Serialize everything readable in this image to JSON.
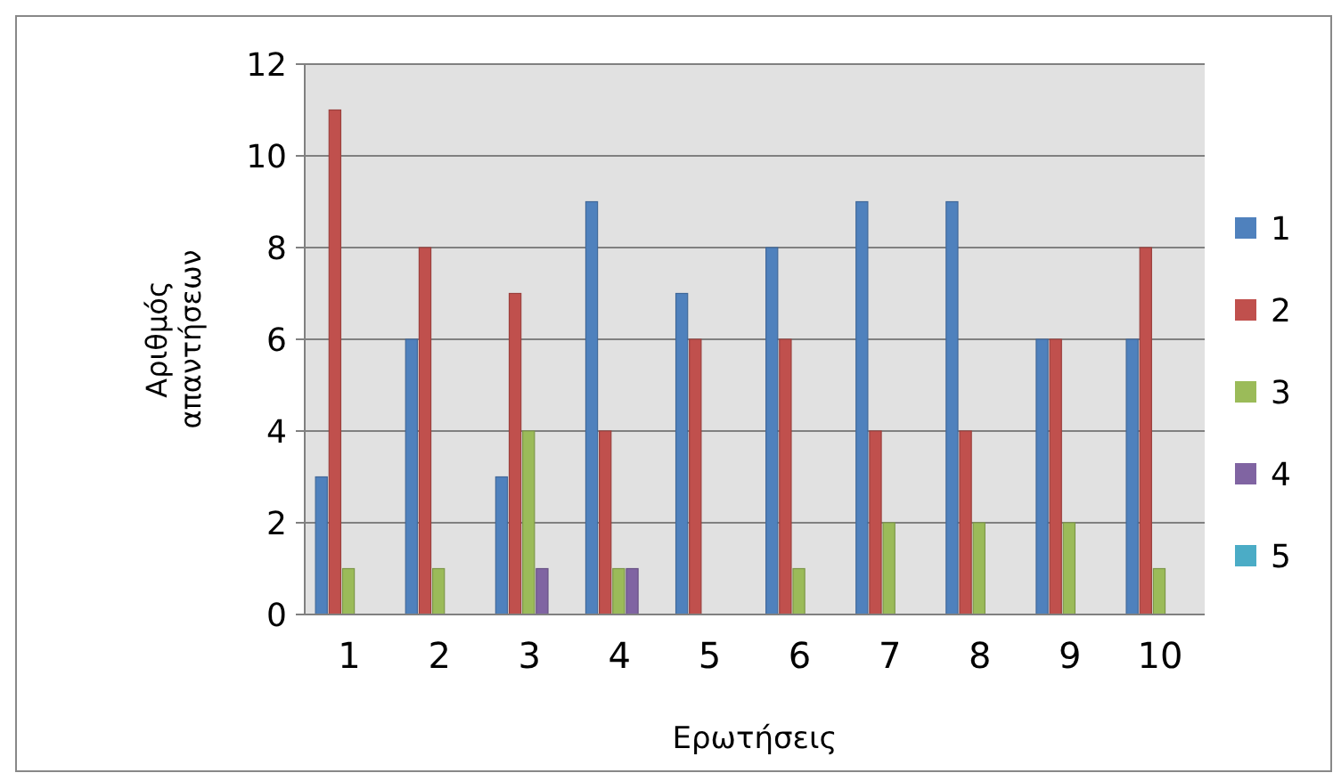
{
  "chart_data": {
    "type": "bar",
    "xlabel": "Ερωτήσεις",
    "ylabel": "Αριθμός απαντήσεων",
    "categories": [
      "1",
      "2",
      "3",
      "4",
      "5",
      "6",
      "7",
      "8",
      "9",
      "10"
    ],
    "series": [
      {
        "name": "1",
        "color": "#4f81bd",
        "values": [
          3,
          6,
          3,
          9,
          7,
          8,
          9,
          9,
          6,
          6
        ]
      },
      {
        "name": "2",
        "color": "#c0504d",
        "values": [
          11,
          8,
          7,
          4,
          6,
          6,
          4,
          4,
          6,
          8
        ]
      },
      {
        "name": "3",
        "color": "#9bbb59",
        "values": [
          1,
          1,
          4,
          1,
          0,
          1,
          2,
          2,
          2,
          1
        ]
      },
      {
        "name": "4",
        "color": "#8064a2",
        "values": [
          0,
          0,
          1,
          1,
          0,
          0,
          0,
          0,
          0,
          0
        ]
      },
      {
        "name": "5",
        "color": "#4bacc6",
        "values": [
          0,
          0,
          0,
          0,
          0,
          0,
          0,
          0,
          0,
          0
        ]
      }
    ],
    "ylim": [
      0,
      12
    ],
    "yticks": [
      0,
      2,
      4,
      6,
      8,
      10,
      12
    ],
    "grid": "y",
    "legend": "right"
  }
}
